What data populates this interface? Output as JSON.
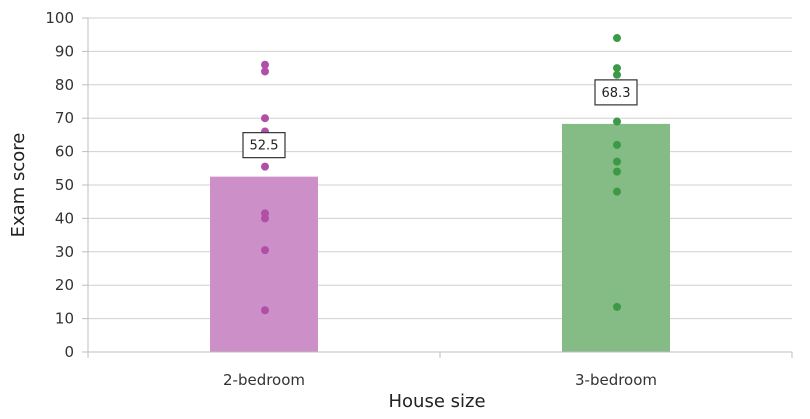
{
  "chart_data": {
    "type": "bar",
    "xlabel": "House size",
    "ylabel": "Exam score",
    "ylim": [
      0,
      100
    ],
    "yticks": [
      0,
      10,
      20,
      30,
      40,
      50,
      60,
      70,
      80,
      90,
      100
    ],
    "grid": true,
    "categories": [
      "2-bedroom",
      "3-bedroom"
    ],
    "values": [
      52.5,
      68.3
    ],
    "value_labels": [
      "52.5",
      "68.3"
    ],
    "bar_colors": [
      "#cc8fc7",
      "#85bb85"
    ],
    "point_colors": [
      "#b04fa8",
      "#3a9a45"
    ],
    "points": [
      [
        86,
        84,
        70,
        66,
        55.5,
        41.5,
        40,
        30.5,
        12.5
      ],
      [
        94,
        85,
        83,
        69,
        62,
        57,
        54,
        48,
        13.5
      ]
    ]
  }
}
